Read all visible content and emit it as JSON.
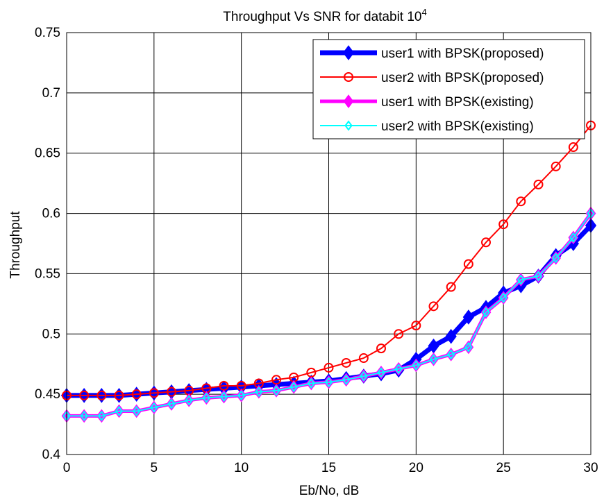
{
  "chart_data": {
    "type": "line",
    "title": "Throughput Vs SNR for databit 10",
    "title_superscript": "4",
    "xlabel": "Eb/No, dB",
    "ylabel": "Throughput",
    "xlim": [
      0,
      30
    ],
    "ylim": [
      0.4,
      0.75
    ],
    "xticks": [
      0,
      5,
      10,
      15,
      20,
      25,
      30
    ],
    "yticks": [
      0.4,
      0.45,
      0.5,
      0.55,
      0.6,
      0.65,
      0.7,
      0.75
    ],
    "ytick_labels": [
      "0.4",
      "0.45",
      "0.5",
      "0.55",
      "0.6",
      "0.65",
      "0.7",
      "0.75"
    ],
    "grid": true,
    "legend_position": "top-right",
    "x": [
      0,
      1,
      2,
      3,
      4,
      5,
      6,
      7,
      8,
      9,
      10,
      11,
      12,
      13,
      14,
      15,
      16,
      17,
      18,
      19,
      20,
      21,
      22,
      23,
      24,
      25,
      26,
      27,
      28,
      29,
      30
    ],
    "series": [
      {
        "name": "user1 with BPSK(proposed)",
        "color": "#0000ff",
        "marker": "diamond-filled",
        "values": [
          0.449,
          0.449,
          0.449,
          0.449,
          0.45,
          0.451,
          0.452,
          0.453,
          0.454,
          0.455,
          0.456,
          0.457,
          0.458,
          0.459,
          0.46,
          0.461,
          0.463,
          0.465,
          0.467,
          0.47,
          0.479,
          0.49,
          0.498,
          0.514,
          0.522,
          0.534,
          0.54,
          0.548,
          0.565,
          0.575,
          0.59
        ]
      },
      {
        "name": "user2 with BPSK(proposed)",
        "color": "#ff0000",
        "marker": "circle-open",
        "values": [
          0.449,
          0.449,
          0.449,
          0.449,
          0.45,
          0.451,
          0.452,
          0.453,
          0.455,
          0.457,
          0.457,
          0.459,
          0.462,
          0.464,
          0.468,
          0.472,
          0.476,
          0.48,
          0.488,
          0.5,
          0.507,
          0.523,
          0.539,
          0.558,
          0.576,
          0.591,
          0.61,
          0.624,
          0.639,
          0.655,
          0.673
        ]
      },
      {
        "name": "user1 with BPSK(existing)",
        "color": "#ff00ff",
        "marker": "diamond-filled",
        "values": [
          0.432,
          0.432,
          0.432,
          0.436,
          0.436,
          0.439,
          0.442,
          0.445,
          0.447,
          0.448,
          0.449,
          0.452,
          0.453,
          0.456,
          0.459,
          0.46,
          0.462,
          0.465,
          0.468,
          0.471,
          0.474,
          0.479,
          0.483,
          0.489,
          0.518,
          0.53,
          0.545,
          0.548,
          0.563,
          0.58,
          0.6
        ]
      },
      {
        "name": "user2 with BPSK(existing)",
        "color": "#00ffff",
        "marker": "diamond-open",
        "values": [
          0.432,
          0.432,
          0.432,
          0.436,
          0.436,
          0.439,
          0.442,
          0.445,
          0.447,
          0.448,
          0.449,
          0.452,
          0.453,
          0.456,
          0.459,
          0.46,
          0.462,
          0.465,
          0.468,
          0.471,
          0.474,
          0.479,
          0.483,
          0.489,
          0.518,
          0.53,
          0.545,
          0.548,
          0.563,
          0.58,
          0.6
        ]
      }
    ]
  }
}
